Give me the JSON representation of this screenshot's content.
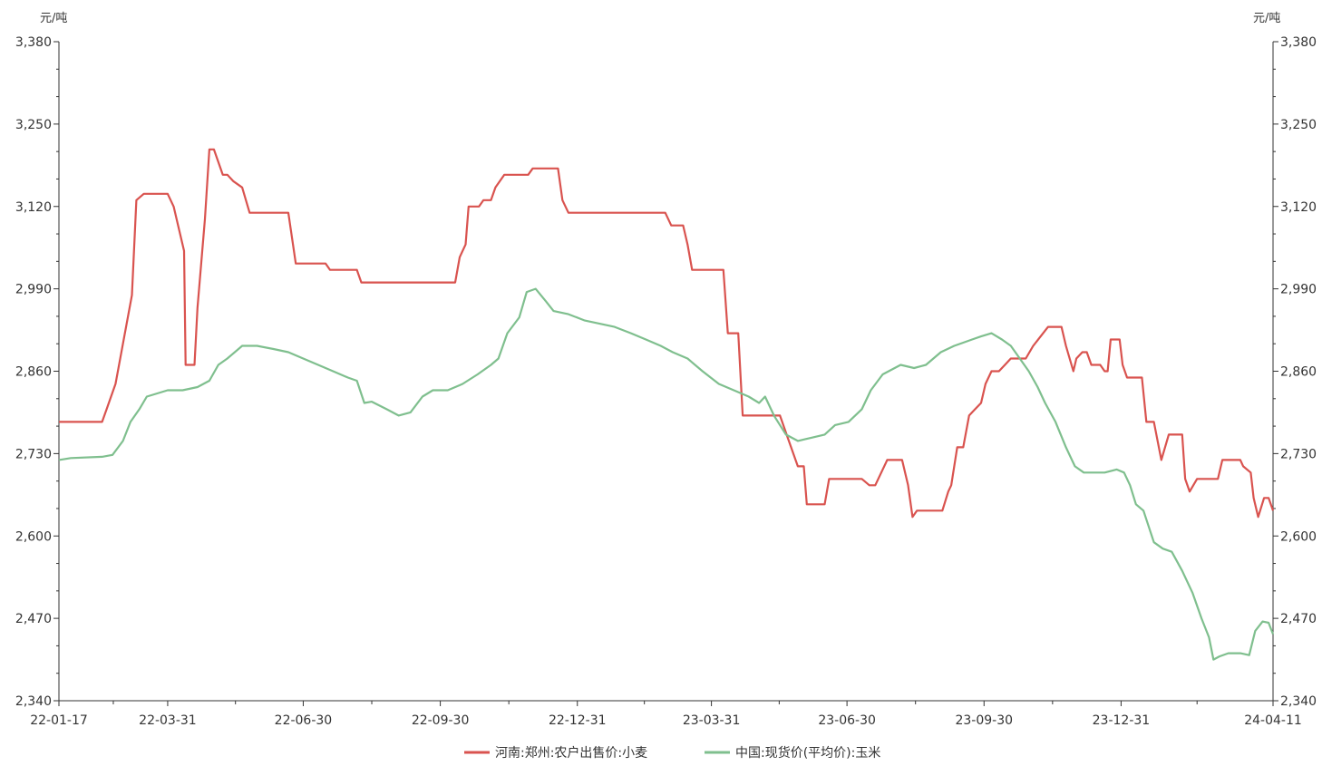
{
  "chart_data": {
    "type": "line",
    "title": "",
    "y_unit_left": "元/吨",
    "y_unit_right": "元/吨",
    "ylim": [
      2340,
      3380
    ],
    "yticks": [
      2340,
      2470,
      2600,
      2730,
      2860,
      2990,
      3120,
      3250,
      3380
    ],
    "ytick_labels": [
      "2,340",
      "2,470",
      "2,600",
      "2,730",
      "2,860",
      "2,990",
      "3,120",
      "3,250",
      "3,380"
    ],
    "xlim": [
      "2022-01-17",
      "2024-04-11"
    ],
    "xtick_labels": [
      {
        "date": "2022-01-17",
        "label": "22-01-17"
      },
      {
        "date": "2022-03-31",
        "label": "22-03-31"
      },
      {
        "date": "2022-06-30",
        "label": "22-06-30"
      },
      {
        "date": "2022-09-30",
        "label": "22-09-30"
      },
      {
        "date": "2022-12-31",
        "label": "22-12-31"
      },
      {
        "date": "2023-03-31",
        "label": "23-03-31"
      },
      {
        "date": "2023-06-30",
        "label": "23-06-30"
      },
      {
        "date": "2023-09-30",
        "label": "23-09-30"
      },
      {
        "date": "2023-12-31",
        "label": "23-12-31"
      },
      {
        "date": "2024-04-11",
        "label": "24-04-11"
      }
    ],
    "grid": false,
    "legend_position": "bottom",
    "series": [
      {
        "name": "河南:郑州:农户出售价:小麦",
        "color": "#d9534f",
        "points": [
          [
            "2022-01-17",
            2780
          ],
          [
            "2022-02-15",
            2780
          ],
          [
            "2022-02-18",
            2800
          ],
          [
            "2022-02-24",
            2840
          ],
          [
            "2022-03-07",
            2980
          ],
          [
            "2022-03-10",
            3130
          ],
          [
            "2022-03-15",
            3140
          ],
          [
            "2022-03-31",
            3140
          ],
          [
            "2022-04-04",
            3120
          ],
          [
            "2022-04-11",
            3050
          ],
          [
            "2022-04-12",
            2870
          ],
          [
            "2022-04-18",
            2870
          ],
          [
            "2022-04-20",
            2960
          ],
          [
            "2022-04-25",
            3100
          ],
          [
            "2022-04-28",
            3210
          ],
          [
            "2022-05-01",
            3210
          ],
          [
            "2022-05-07",
            3170
          ],
          [
            "2022-05-10",
            3170
          ],
          [
            "2022-05-14",
            3160
          ],
          [
            "2022-05-20",
            3150
          ],
          [
            "2022-05-25",
            3110
          ],
          [
            "2022-06-20",
            3110
          ],
          [
            "2022-06-25",
            3030
          ],
          [
            "2022-07-15",
            3030
          ],
          [
            "2022-07-18",
            3020
          ],
          [
            "2022-08-05",
            3020
          ],
          [
            "2022-08-08",
            3000
          ],
          [
            "2022-10-10",
            3000
          ],
          [
            "2022-10-13",
            3040
          ],
          [
            "2022-10-17",
            3060
          ],
          [
            "2022-10-19",
            3120
          ],
          [
            "2022-10-26",
            3120
          ],
          [
            "2022-10-29",
            3130
          ],
          [
            "2022-11-03",
            3130
          ],
          [
            "2022-11-06",
            3150
          ],
          [
            "2022-11-12",
            3170
          ],
          [
            "2022-11-28",
            3170
          ],
          [
            "2022-12-01",
            3180
          ],
          [
            "2022-12-18",
            3180
          ],
          [
            "2022-12-21",
            3130
          ],
          [
            "2022-12-25",
            3110
          ],
          [
            "2023-02-28",
            3110
          ],
          [
            "2023-03-04",
            3090
          ],
          [
            "2023-03-12",
            3090
          ],
          [
            "2023-03-15",
            3060
          ],
          [
            "2023-03-18",
            3020
          ],
          [
            "2023-04-08",
            3020
          ],
          [
            "2023-04-11",
            2920
          ],
          [
            "2023-04-18",
            2920
          ],
          [
            "2023-04-21",
            2790
          ],
          [
            "2023-05-16",
            2790
          ],
          [
            "2023-05-22",
            2750
          ],
          [
            "2023-05-28",
            2710
          ],
          [
            "2023-06-01",
            2710
          ],
          [
            "2023-06-03",
            2650
          ],
          [
            "2023-06-15",
            2650
          ],
          [
            "2023-06-18",
            2690
          ],
          [
            "2023-07-10",
            2690
          ],
          [
            "2023-07-15",
            2680
          ],
          [
            "2023-07-19",
            2680
          ],
          [
            "2023-07-27",
            2720
          ],
          [
            "2023-08-06",
            2720
          ],
          [
            "2023-08-10",
            2680
          ],
          [
            "2023-08-13",
            2630
          ],
          [
            "2023-08-16",
            2640
          ],
          [
            "2023-09-02",
            2640
          ],
          [
            "2023-09-06",
            2670
          ],
          [
            "2023-09-08",
            2680
          ],
          [
            "2023-09-12",
            2740
          ],
          [
            "2023-09-16",
            2740
          ],
          [
            "2023-09-20",
            2790
          ],
          [
            "2023-09-24",
            2800
          ],
          [
            "2023-09-28",
            2810
          ],
          [
            "2023-10-01",
            2840
          ],
          [
            "2023-10-05",
            2860
          ],
          [
            "2023-10-10",
            2860
          ],
          [
            "2023-10-14",
            2870
          ],
          [
            "2023-10-18",
            2880
          ],
          [
            "2023-10-28",
            2880
          ],
          [
            "2023-11-02",
            2900
          ],
          [
            "2023-11-12",
            2930
          ],
          [
            "2023-11-21",
            2930
          ],
          [
            "2023-11-24",
            2900
          ],
          [
            "2023-11-29",
            2860
          ],
          [
            "2023-12-01",
            2880
          ],
          [
            "2023-12-05",
            2890
          ],
          [
            "2023-12-08",
            2890
          ],
          [
            "2023-12-11",
            2870
          ],
          [
            "2023-12-17",
            2870
          ],
          [
            "2023-12-20",
            2860
          ],
          [
            "2023-12-22",
            2860
          ],
          [
            "2023-12-24",
            2910
          ],
          [
            "2023-12-30",
            2910
          ],
          [
            "2024-01-01",
            2870
          ],
          [
            "2024-01-04",
            2850
          ],
          [
            "2024-01-14",
            2850
          ],
          [
            "2024-01-17",
            2780
          ],
          [
            "2024-01-22",
            2780
          ],
          [
            "2024-01-27",
            2720
          ],
          [
            "2024-02-01",
            2760
          ],
          [
            "2024-02-10",
            2760
          ],
          [
            "2024-02-12",
            2690
          ],
          [
            "2024-02-15",
            2670
          ],
          [
            "2024-02-20",
            2690
          ],
          [
            "2024-03-05",
            2690
          ],
          [
            "2024-03-08",
            2720
          ],
          [
            "2024-03-20",
            2720
          ],
          [
            "2024-03-22",
            2710
          ],
          [
            "2024-03-27",
            2700
          ],
          [
            "2024-03-29",
            2660
          ],
          [
            "2024-04-01",
            2630
          ],
          [
            "2024-04-05",
            2660
          ],
          [
            "2024-04-08",
            2660
          ],
          [
            "2024-04-11",
            2640
          ]
        ]
      },
      {
        "name": "中国:现货价(平均价):玉米",
        "color": "#7fbf8e",
        "points": [
          [
            "2022-01-17",
            2720
          ],
          [
            "2022-01-25",
            2723
          ],
          [
            "2022-02-15",
            2725
          ],
          [
            "2022-02-22",
            2728
          ],
          [
            "2022-03-01",
            2750
          ],
          [
            "2022-03-06",
            2780
          ],
          [
            "2022-03-12",
            2800
          ],
          [
            "2022-03-17",
            2820
          ],
          [
            "2022-03-24",
            2825
          ],
          [
            "2022-03-31",
            2830
          ],
          [
            "2022-04-10",
            2830
          ],
          [
            "2022-04-20",
            2835
          ],
          [
            "2022-04-28",
            2845
          ],
          [
            "2022-05-04",
            2870
          ],
          [
            "2022-05-10",
            2880
          ],
          [
            "2022-05-20",
            2900
          ],
          [
            "2022-05-30",
            2900
          ],
          [
            "2022-06-10",
            2895
          ],
          [
            "2022-06-20",
            2890
          ],
          [
            "2022-06-30",
            2880
          ],
          [
            "2022-07-10",
            2870
          ],
          [
            "2022-07-20",
            2860
          ],
          [
            "2022-07-30",
            2850
          ],
          [
            "2022-08-05",
            2845
          ],
          [
            "2022-08-10",
            2810
          ],
          [
            "2022-08-15",
            2812
          ],
          [
            "2022-08-25",
            2800
          ],
          [
            "2022-09-02",
            2790
          ],
          [
            "2022-09-10",
            2795
          ],
          [
            "2022-09-18",
            2820
          ],
          [
            "2022-09-25",
            2830
          ],
          [
            "2022-10-05",
            2830
          ],
          [
            "2022-10-15",
            2840
          ],
          [
            "2022-10-25",
            2855
          ],
          [
            "2022-11-03",
            2870
          ],
          [
            "2022-11-08",
            2880
          ],
          [
            "2022-11-14",
            2920
          ],
          [
            "2022-11-22",
            2945
          ],
          [
            "2022-11-27",
            2985
          ],
          [
            "2022-12-03",
            2990
          ],
          [
            "2022-12-10",
            2970
          ],
          [
            "2022-12-15",
            2955
          ],
          [
            "2022-12-25",
            2950
          ],
          [
            "2023-01-05",
            2940
          ],
          [
            "2023-01-15",
            2935
          ],
          [
            "2023-01-25",
            2930
          ],
          [
            "2023-02-05",
            2920
          ],
          [
            "2023-02-15",
            2910
          ],
          [
            "2023-02-25",
            2900
          ],
          [
            "2023-03-05",
            2890
          ],
          [
            "2023-03-15",
            2880
          ],
          [
            "2023-03-25",
            2860
          ],
          [
            "2023-04-05",
            2840
          ],
          [
            "2023-04-15",
            2830
          ],
          [
            "2023-04-25",
            2820
          ],
          [
            "2023-05-02",
            2810
          ],
          [
            "2023-05-06",
            2820
          ],
          [
            "2023-05-12",
            2790
          ],
          [
            "2023-05-20",
            2760
          ],
          [
            "2023-05-28",
            2750
          ],
          [
            "2023-06-06",
            2755
          ],
          [
            "2023-06-15",
            2760
          ],
          [
            "2023-06-22",
            2775
          ],
          [
            "2023-07-01",
            2780
          ],
          [
            "2023-07-10",
            2800
          ],
          [
            "2023-07-16",
            2830
          ],
          [
            "2023-07-24",
            2855
          ],
          [
            "2023-08-05",
            2870
          ],
          [
            "2023-08-14",
            2865
          ],
          [
            "2023-08-22",
            2870
          ],
          [
            "2023-09-01",
            2890
          ],
          [
            "2023-09-10",
            2900
          ],
          [
            "2023-09-16",
            2905
          ],
          [
            "2023-09-22",
            2910
          ],
          [
            "2023-09-28",
            2915
          ],
          [
            "2023-10-05",
            2920
          ],
          [
            "2023-10-12",
            2910
          ],
          [
            "2023-10-18",
            2900
          ],
          [
            "2023-10-24",
            2880
          ],
          [
            "2023-10-30",
            2860
          ],
          [
            "2023-11-05",
            2835
          ],
          [
            "2023-11-10",
            2810
          ],
          [
            "2023-11-17",
            2780
          ],
          [
            "2023-11-24",
            2740
          ],
          [
            "2023-11-30",
            2710
          ],
          [
            "2023-12-06",
            2700
          ],
          [
            "2023-12-12",
            2700
          ],
          [
            "2023-12-20",
            2700
          ],
          [
            "2023-12-28",
            2705
          ],
          [
            "2024-01-02",
            2700
          ],
          [
            "2024-01-06",
            2680
          ],
          [
            "2024-01-10",
            2650
          ],
          [
            "2024-01-15",
            2640
          ],
          [
            "2024-01-22",
            2590
          ],
          [
            "2024-01-28",
            2580
          ],
          [
            "2024-02-03",
            2575
          ],
          [
            "2024-02-10",
            2545
          ],
          [
            "2024-02-17",
            2510
          ],
          [
            "2024-02-23",
            2470
          ],
          [
            "2024-02-28",
            2440
          ],
          [
            "2024-03-02",
            2405
          ],
          [
            "2024-03-06",
            2410
          ],
          [
            "2024-03-12",
            2415
          ],
          [
            "2024-03-20",
            2415
          ],
          [
            "2024-03-26",
            2412
          ],
          [
            "2024-03-30",
            2450
          ],
          [
            "2024-04-04",
            2465
          ],
          [
            "2024-04-08",
            2463
          ],
          [
            "2024-04-11",
            2445
          ]
        ]
      }
    ]
  }
}
